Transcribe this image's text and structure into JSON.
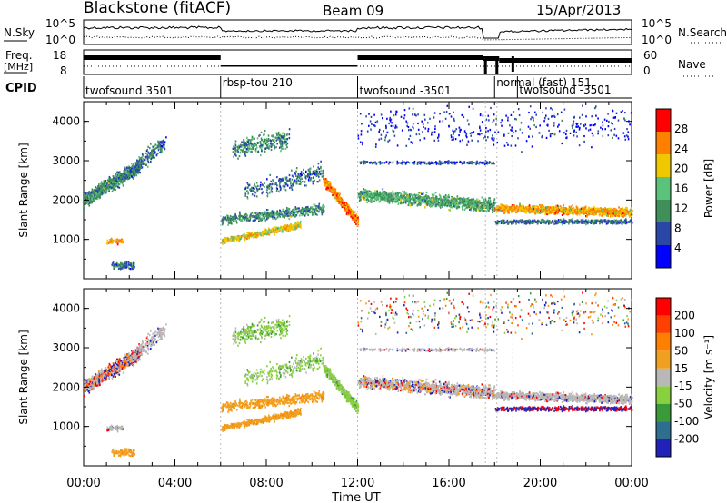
{
  "header": {
    "station": "Blackstone (fitACF)",
    "beam": "Beam 09",
    "date": "15/Apr/2013"
  },
  "panel_labels": {
    "nsky": "N.Sky",
    "freq": "Freq.",
    "freq_unit": "[MHz]",
    "cpid": "CPID",
    "nsearch": "N.Search",
    "nave": "Nave"
  },
  "noise_axis": {
    "left_top": "10^5",
    "left_bottom": "10^0",
    "right_top": "10^5",
    "right_bottom": "10^0"
  },
  "freq_axis": {
    "left_top": "18",
    "left_bottom": "8",
    "right_top": "60",
    "right_bottom": "0"
  },
  "cpid_blocks": [
    {
      "label": "twofsound 3501",
      "start_h": 0.0,
      "end_h": 6.0
    },
    {
      "label": "rbsp-tou 210",
      "start_h": 6.0,
      "end_h": 12.0
    },
    {
      "label": "twofsound -3501",
      "start_h": 12.0,
      "end_h": 18.0
    },
    {
      "label": "normal (fast) 151",
      "start_h": 18.0,
      "end_h": 19.0
    },
    {
      "label": "twofsound -3501",
      "start_h": 19.0,
      "end_h": 24.0
    }
  ],
  "chart_data": [
    {
      "type": "heatmap",
      "name": "power",
      "ylabel": "Slant Range [km]",
      "ylim": [
        0,
        4500
      ],
      "yticks": [
        "1000",
        "2000",
        "3000",
        "4000"
      ],
      "colorbar_label": "Power [dB]",
      "colorbar_ticks": [
        "28",
        "24",
        "20",
        "16",
        "12",
        "8",
        "4"
      ],
      "colors": [
        "#0000ff",
        "#2a47a8",
        "#3f8f5a",
        "#5ac27a",
        "#f0c800",
        "#ff8000",
        "#ff0000"
      ]
    },
    {
      "type": "heatmap",
      "name": "velocity",
      "ylabel": "Slant Range [km]",
      "ylim": [
        0,
        4500
      ],
      "yticks": [
        "1000",
        "2000",
        "3000",
        "4000"
      ],
      "colorbar_label": "Velocity [m s⁻¹]",
      "colorbar_ticks": [
        "200",
        "100",
        "50",
        "15",
        "-15",
        "-50",
        "-100",
        "-200"
      ],
      "colors": [
        "#2222b8",
        "#2e6e8e",
        "#3a9a3a",
        "#88d040",
        "#b8b8b8",
        "#f0a020",
        "#ff8000",
        "#ff4000",
        "#ff0000"
      ]
    }
  ],
  "xaxis": {
    "label": "Time UT",
    "ticks": [
      "00:00",
      "04:00",
      "08:00",
      "12:00",
      "16:00",
      "20:00",
      "00:00"
    ]
  }
}
